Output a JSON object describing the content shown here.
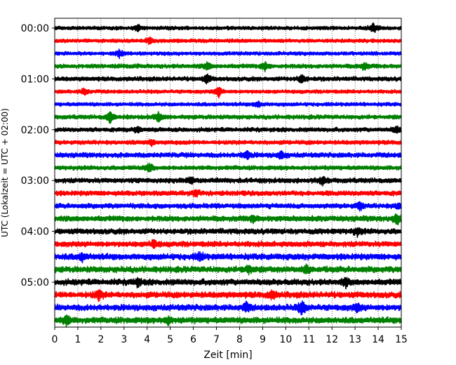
{
  "chart_data": {
    "type": "line",
    "title": "",
    "xlabel": "Zeit  [min]",
    "ylabel": "UTC (Lokalzeit = UTC + 02:00)",
    "xlim": [
      0,
      15
    ],
    "x_ticks": [
      "0",
      "1",
      "2",
      "3",
      "4",
      "5",
      "6",
      "7",
      "8",
      "9",
      "10",
      "11",
      "12",
      "13",
      "14",
      "15"
    ],
    "y_ticks": [
      "00:00",
      "01:00",
      "02:00",
      "03:00",
      "04:00",
      "05:00"
    ],
    "row_interval_min": 15,
    "grid": "vertical dotted lines at each minute",
    "color_cycle": [
      "#000000",
      "#ff0000",
      "#0000ff",
      "#008000"
    ],
    "series": [
      {
        "start": "00:00",
        "amplitude": 3,
        "events": [
          [
            13.8,
            7
          ],
          [
            3.6,
            4
          ]
        ]
      },
      {
        "start": "00:15",
        "amplitude": 3,
        "events": [
          [
            4.1,
            4
          ]
        ]
      },
      {
        "start": "00:30",
        "amplitude": 3,
        "events": [
          [
            2.8,
            5
          ]
        ]
      },
      {
        "start": "00:45",
        "amplitude": 3.5,
        "events": [
          [
            6.6,
            5
          ],
          [
            9.1,
            6
          ],
          [
            13.4,
            5
          ]
        ]
      },
      {
        "start": "01:00",
        "amplitude": 3.5,
        "events": [
          [
            6.6,
            6
          ],
          [
            10.7,
            6
          ]
        ]
      },
      {
        "start": "01:15",
        "amplitude": 3,
        "events": [
          [
            7.1,
            7
          ],
          [
            1.3,
            5
          ]
        ]
      },
      {
        "start": "01:30",
        "amplitude": 3,
        "events": [
          [
            8.8,
            4
          ]
        ]
      },
      {
        "start": "01:45",
        "amplitude": 3.5,
        "events": [
          [
            2.4,
            8
          ],
          [
            4.5,
            7
          ]
        ]
      },
      {
        "start": "02:00",
        "amplitude": 3.5,
        "events": [
          [
            14.8,
            5
          ],
          [
            3.6,
            4
          ]
        ]
      },
      {
        "start": "02:15",
        "amplitude": 3.5,
        "events": [
          [
            4.2,
            4
          ]
        ]
      },
      {
        "start": "02:30",
        "amplitude": 4,
        "events": [
          [
            8.3,
            6
          ],
          [
            9.8,
            5
          ]
        ]
      },
      {
        "start": "02:45",
        "amplitude": 3.5,
        "events": [
          [
            4.1,
            6
          ]
        ]
      },
      {
        "start": "03:00",
        "amplitude": 4,
        "events": [
          [
            5.9,
            5
          ],
          [
            11.6,
            5
          ]
        ]
      },
      {
        "start": "03:15",
        "amplitude": 4,
        "events": [
          [
            6.1,
            4
          ]
        ]
      },
      {
        "start": "03:30",
        "amplitude": 4,
        "events": [
          [
            13.2,
            5
          ],
          [
            14.9,
            4
          ]
        ]
      },
      {
        "start": "03:45",
        "amplitude": 4.5,
        "events": [
          [
            14.8,
            8
          ],
          [
            8.6,
            5
          ]
        ]
      },
      {
        "start": "04:00",
        "amplitude": 4.5,
        "events": [
          [
            13.1,
            5
          ]
        ]
      },
      {
        "start": "04:15",
        "amplitude": 4.5,
        "events": [
          [
            4.3,
            5
          ]
        ]
      },
      {
        "start": "04:30",
        "amplitude": 5,
        "events": [
          [
            6.3,
            5
          ],
          [
            1.2,
            5
          ]
        ]
      },
      {
        "start": "04:45",
        "amplitude": 5,
        "events": [
          [
            8.4,
            6
          ],
          [
            10.9,
            5
          ]
        ]
      },
      {
        "start": "05:00",
        "amplitude": 5,
        "events": [
          [
            12.6,
            5
          ],
          [
            3.6,
            5
          ]
        ]
      },
      {
        "start": "05:15",
        "amplitude": 5,
        "events": [
          [
            1.9,
            7
          ],
          [
            9.4,
            5
          ]
        ]
      },
      {
        "start": "05:30",
        "amplitude": 5,
        "events": [
          [
            10.7,
            10
          ],
          [
            8.3,
            6
          ],
          [
            13.1,
            5
          ]
        ]
      },
      {
        "start": "05:45",
        "amplitude": 5,
        "events": [
          [
            0.5,
            7
          ],
          [
            4.9,
            5
          ]
        ]
      }
    ]
  }
}
